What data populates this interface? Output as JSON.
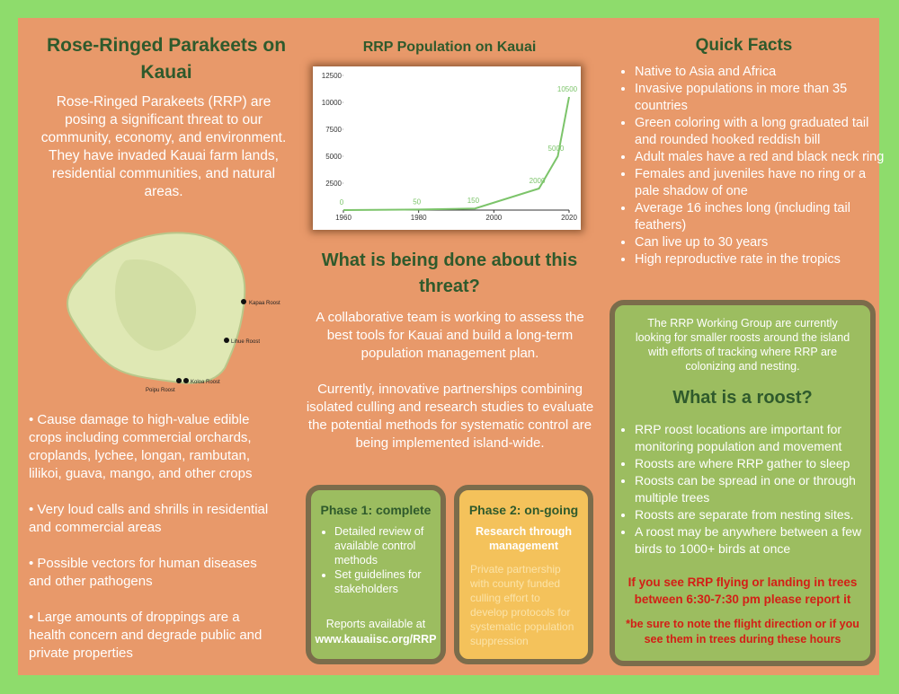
{
  "left": {
    "title": "Rose-Ringed Parakeets on Kauai",
    "intro": "Rose-Ringed Parakeets (RRP) are posing a significant threat to our community, economy, and environment. They have  invaded Kauai farm lands, residential communities, and natural areas.",
    "map_labels": [
      "Kapaa Roost",
      "Lihue Roost",
      "Koloa Roost",
      "Poipu Roost"
    ],
    "bullets": [
      "• Cause damage to high-value edible crops including commercial orchards, croplands, lychee, longan, rambutan, lilikoi, guava, mango, and other crops",
      "• Very loud calls and shrills in residential and commercial areas",
      "• Possible vectors for human diseases and other pathogens",
      "• Large amounts of droppings are a health concern and degrade public and private properties"
    ]
  },
  "chart_data": {
    "type": "line",
    "title": "RRP Population on Kauai",
    "x": [
      1960,
      1980,
      1995,
      2012,
      2017,
      2020
    ],
    "values": [
      0,
      50,
      150,
      2000,
      5000,
      10500
    ],
    "xlim": [
      1960,
      2020
    ],
    "xticks": [
      1960,
      1980,
      2000,
      2020
    ],
    "ylim": [
      0,
      12500
    ],
    "yticks": [
      2500,
      5000,
      7500,
      10000,
      12500
    ],
    "color": "#7cc46a"
  },
  "middle": {
    "heading": "What is being done about this threat?",
    "paragraphs": [
      "A collaborative team is working to assess the best tools for Kauai and build a long-term population management plan.",
      "Currently, innovative partnerships combining isolated culling and research studies to evaluate the potential methods for systematic control are being implemented island-wide."
    ],
    "phase1": {
      "title": "Phase 1: complete",
      "bullets": [
        "Detailed review of available control methods",
        "Set guidelines for stakeholders"
      ],
      "footer": "Reports available at",
      "link": "www.kauaiisc.org/RRP"
    },
    "phase2": {
      "title": "Phase 2: on-going",
      "subtitle": "Research through management",
      "text": "Private partnership with county funded culling effort to develop protocols for systematic population suppression"
    }
  },
  "right": {
    "title": "Quick Facts",
    "facts": [
      "Native to Asia and Africa",
      "Invasive populations in more than 35 countries",
      "Green coloring with a long graduated tail and rounded hooked reddish bill",
      "Adult males have a red and black neck ring",
      "Females and juveniles have no ring or a pale shadow of one",
      "Average 16 inches long (including tail feathers)",
      "Can live up to 30 years",
      "High reproductive rate in the tropics"
    ],
    "roost": {
      "intro": "The RRP Working Group are currently looking for smaller roosts around the island with efforts of tracking where RRP are colonizing and nesting.",
      "title": "What is a roost?",
      "bullets": [
        "RRP roost locations are important for monitoring population and movement",
        "Roosts are where RRP gather to sleep",
        "Roosts can be spread in one or through multiple trees",
        "Roosts are separate from nesting sites.",
        "A roost may be anywhere between a few birds to 1000+ birds at once"
      ],
      "alert": "If you see RRP flying or landing in trees between 6:30-7:30 pm please report it",
      "note": "*be sure to note the flight direction or if you see them in trees during these hours"
    }
  }
}
